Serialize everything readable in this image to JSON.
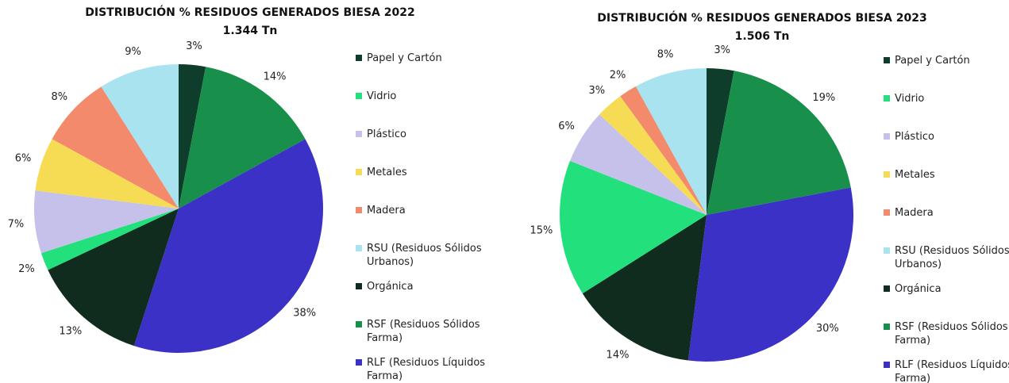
{
  "chart_data": [
    {
      "type": "pie",
      "title": "DISTRIBUCIÓN % RESIDUOS GENERADOS BIESA 2022",
      "subtitle": "1.344 Tn",
      "categories": [
        "Papel y Cartón",
        "Vidrio",
        "Plástico",
        "Metales",
        "Madera",
        "RSU (Residuos Sólidos Urbanos)",
        "Orgánica",
        "RSF (Residuos Sólidos Farma)",
        "RLF (Residuos Líquidos Farma)"
      ],
      "values": [
        3,
        2,
        7,
        6,
        8,
        9,
        13,
        14,
        38
      ],
      "value_labels": [
        "3%",
        "2%",
        "7%",
        "6%",
        "8%",
        "9%",
        "13%",
        "14%",
        "38%"
      ],
      "colors": [
        "#0f3d2b",
        "#22e07c",
        "#c6c1ea",
        "#f6dc55",
        "#f28a6b",
        "#a9e3ef",
        "#0f2c1e",
        "#18904c",
        "#3b31c6"
      ],
      "legend": "right"
    },
    {
      "type": "pie",
      "title": "DISTRIBUCIÓN % RESIDUOS GENERADOS BIESA 2023",
      "subtitle": "1.506 Tn",
      "categories": [
        "Papel y Cartón",
        "Vidrio",
        "Plástico",
        "Metales",
        "Madera",
        "RSU (Residuos Sólidos Urbanos)",
        "Orgánica",
        "RSF (Residuos Sólidos Farma)",
        "RLF (Residuos Líquidos Farma)"
      ],
      "values": [
        3,
        15,
        6,
        3,
        2,
        8,
        14,
        19,
        30
      ],
      "value_labels": [
        "3%",
        "15%",
        "6%",
        "3%",
        "2%",
        "8%",
        "14%",
        "19%",
        "30%"
      ],
      "colors": [
        "#0f3d2b",
        "#22e07c",
        "#c6c1ea",
        "#f6dc55",
        "#f28a6b",
        "#a9e3ef",
        "#0f2c1e",
        "#18904c",
        "#3b31c6"
      ],
      "legend": "right"
    }
  ]
}
